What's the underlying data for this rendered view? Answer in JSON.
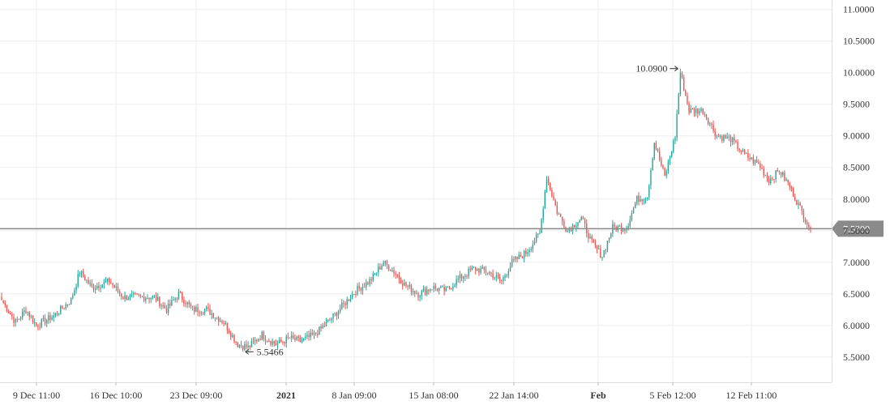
{
  "chart_data": {
    "type": "candlestick",
    "title": "",
    "xlabel": "",
    "ylabel": "",
    "ylim": [
      5.1,
      11.15
    ],
    "y_ticks": [
      "11.0000",
      "10.5000",
      "10.0000",
      "9.5000",
      "9.0000",
      "8.5000",
      "8.0000",
      "7.5000",
      "7.0000",
      "6.5000",
      "6.0000",
      "5.5000"
    ],
    "x_ticks": [
      {
        "label": "9 Dec 11:00",
        "bold": false
      },
      {
        "label": "16 Dec 10:00",
        "bold": false
      },
      {
        "label": "23 Dec 09:00",
        "bold": false
      },
      {
        "label": "2021",
        "bold": true
      },
      {
        "label": "8 Jan 09:00",
        "bold": false
      },
      {
        "label": "15 Jan 08:00",
        "bold": false
      },
      {
        "label": "22 Jan 14:00",
        "bold": false
      },
      {
        "label": "Feb",
        "bold": true
      },
      {
        "label": "5 Feb 12:00",
        "bold": false
      },
      {
        "label": "12 Feb 11:00",
        "bold": false
      }
    ],
    "colors": {
      "up": "#26a69a",
      "down": "#ef5350",
      "grid": "#eeeeee",
      "axis_text": "#333333",
      "last_price": "#888888"
    },
    "last_price": {
      "value": 7.53,
      "label": "7.5300"
    },
    "annotations": [
      {
        "label": "10.0900",
        "value": 10.09,
        "kind": "high"
      },
      {
        "label": "5.5466",
        "value": 5.5466,
        "kind": "low"
      }
    ],
    "close_anchors": [
      [
        0,
        6.4
      ],
      [
        8,
        6.05
      ],
      [
        14,
        6.25
      ],
      [
        20,
        6.0
      ],
      [
        30,
        6.15
      ],
      [
        40,
        6.4
      ],
      [
        45,
        6.85
      ],
      [
        52,
        6.6
      ],
      [
        62,
        6.7
      ],
      [
        70,
        6.45
      ],
      [
        80,
        6.45
      ],
      [
        88,
        6.45
      ],
      [
        95,
        6.25
      ],
      [
        102,
        6.5
      ],
      [
        110,
        6.25
      ],
      [
        118,
        6.25
      ],
      [
        128,
        6.05
      ],
      [
        136,
        5.7
      ],
      [
        142,
        5.65
      ],
      [
        150,
        5.85
      ],
      [
        158,
        5.7
      ],
      [
        166,
        5.8
      ],
      [
        172,
        5.75
      ],
      [
        180,
        5.85
      ],
      [
        188,
        6.05
      ],
      [
        196,
        6.3
      ],
      [
        204,
        6.55
      ],
      [
        212,
        6.7
      ],
      [
        220,
        7.0
      ],
      [
        226,
        6.85
      ],
      [
        232,
        6.65
      ],
      [
        240,
        6.5
      ],
      [
        248,
        6.6
      ],
      [
        256,
        6.55
      ],
      [
        264,
        6.75
      ],
      [
        272,
        6.9
      ],
      [
        280,
        6.85
      ],
      [
        288,
        6.7
      ],
      [
        294,
        7.0
      ],
      [
        302,
        7.15
      ],
      [
        310,
        7.45
      ],
      [
        314,
        8.35
      ],
      [
        320,
        7.8
      ],
      [
        326,
        7.5
      ],
      [
        334,
        7.7
      ],
      [
        340,
        7.3
      ],
      [
        346,
        7.1
      ],
      [
        352,
        7.55
      ],
      [
        360,
        7.55
      ],
      [
        366,
        8.0
      ],
      [
        372,
        8.05
      ],
      [
        376,
        8.9
      ],
      [
        382,
        8.35
      ],
      [
        388,
        9.0
      ],
      [
        391,
        10.0
      ],
      [
        396,
        9.4
      ],
      [
        404,
        9.4
      ],
      [
        412,
        9.0
      ],
      [
        420,
        8.95
      ],
      [
        428,
        8.7
      ],
      [
        436,
        8.55
      ],
      [
        442,
        8.3
      ],
      [
        448,
        8.45
      ],
      [
        454,
        8.2
      ],
      [
        460,
        7.85
      ],
      [
        466,
        7.53
      ]
    ]
  }
}
